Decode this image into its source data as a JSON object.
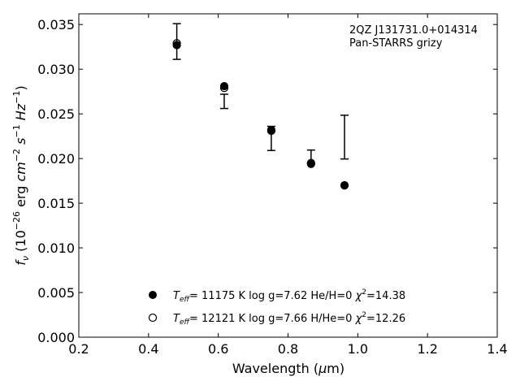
{
  "chart_data": {
    "type": "scatter",
    "title": "",
    "annotation_lines": [
      "2QZ J131731.0+014314",
      "Pan-STARRS grizy"
    ],
    "xlabel": "Wavelength (μm)",
    "ylabel": "fν (10⁻²⁶ erg cm⁻² s⁻¹ Hz⁻¹)",
    "xlim": [
      0.2,
      1.4
    ],
    "ylim": [
      0.0,
      0.0362
    ],
    "xticks": [
      0.2,
      0.4,
      0.6,
      0.8,
      1.0,
      1.2,
      1.4
    ],
    "xtick_labels": [
      "0.2",
      "0.4",
      "0.6",
      "0.8",
      "1.0",
      "1.2",
      "1.4"
    ],
    "yticks": [
      0.0,
      0.005,
      0.01,
      0.015,
      0.02,
      0.025,
      0.03,
      0.035
    ],
    "ytick_labels": [
      "0.000",
      "0.005",
      "0.010",
      "0.015",
      "0.020",
      "0.025",
      "0.030",
      "0.035"
    ],
    "grid": false,
    "legend_position": "bottom-center",
    "observed": {
      "x": [
        0.481,
        0.617,
        0.752,
        0.866,
        0.962
      ],
      "y": [
        0.0331,
        0.0264,
        0.02225,
        0.0202,
        0.0224
      ],
      "err": [
        0.002,
        0.0008,
        0.00135,
        0.00075,
        0.00245
      ]
    },
    "series": [
      {
        "name": "Teff= 11175 K  log g=7.62  He/H=0  χ²=14.38",
        "marker": "filled-circle",
        "color": "#000000",
        "x": [
          0.481,
          0.617,
          0.752,
          0.866,
          0.962
        ],
        "y": [
          0.0327,
          0.0281,
          0.0232,
          0.0194,
          0.017
        ]
      },
      {
        "name": "Teff= 12121 K  log g=7.66  H/He=0  χ²=12.26",
        "marker": "open-circle",
        "color": "#000000",
        "x": [
          0.481,
          0.617,
          0.752,
          0.866,
          0.962
        ],
        "y": [
          0.0329,
          0.0279,
          0.0231,
          0.0195,
          0.017
        ]
      }
    ],
    "legend": [
      {
        "teff_sub": "eff",
        "text": "= 11175 K  log g=7.62  He/H=0  ",
        "chi": "=14.38"
      },
      {
        "teff_sub": "eff",
        "text": "= 12121 K  log g=7.66  H/He=0  ",
        "chi": "=12.26"
      }
    ]
  }
}
